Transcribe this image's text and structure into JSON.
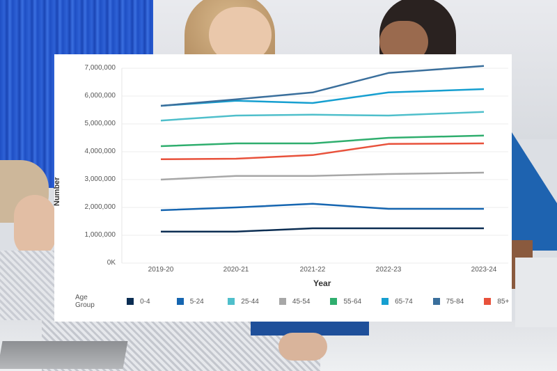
{
  "chart_data": {
    "type": "line",
    "title": "",
    "xlabel": "Year",
    "ylabel": "Number",
    "categories": [
      "2019-20",
      "2020-21",
      "2021-22",
      "2022-23",
      "2023-24"
    ],
    "y_ticks": [
      "0K",
      "1,000,000",
      "2,000,000",
      "3,000,000",
      "4,000,000",
      "5,000,000",
      "6,000,000",
      "7,000,000"
    ],
    "ylim": [
      0,
      7000000
    ],
    "grid": true,
    "legend_title": "Age Group",
    "legend_position": "bottom",
    "series": [
      {
        "name": "0-4",
        "color": "#0b2d52",
        "values": [
          1130000,
          1130000,
          1250000,
          1250000,
          1250000
        ]
      },
      {
        "name": "5-24",
        "color": "#1565b0",
        "values": [
          1900000,
          2000000,
          2130000,
          1950000,
          1950000
        ]
      },
      {
        "name": "25-44",
        "color": "#4fbfcb",
        "values": [
          5120000,
          5300000,
          5330000,
          5300000,
          5430000
        ]
      },
      {
        "name": "45-54",
        "color": "#a7a7a7",
        "values": [
          3000000,
          3130000,
          3130000,
          3200000,
          3250000
        ]
      },
      {
        "name": "55-64",
        "color": "#2fae6e",
        "values": [
          4200000,
          4300000,
          4300000,
          4500000,
          4580000
        ]
      },
      {
        "name": "65-74",
        "color": "#169fd0",
        "values": [
          5650000,
          5830000,
          5750000,
          6130000,
          6250000
        ]
      },
      {
        "name": "75-84",
        "color": "#3a6f9c",
        "values": [
          5650000,
          5880000,
          6130000,
          6830000,
          7080000
        ]
      },
      {
        "name": "85+",
        "color": "#e8513b",
        "values": [
          3730000,
          3750000,
          3880000,
          4280000,
          4300000
        ]
      }
    ]
  }
}
